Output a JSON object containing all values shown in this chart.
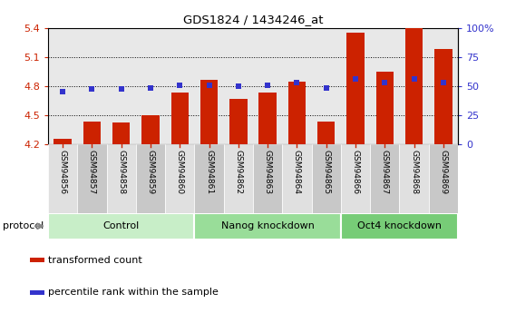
{
  "title": "GDS1824 / 1434246_at",
  "samples": [
    "GSM94856",
    "GSM94857",
    "GSM94858",
    "GSM94859",
    "GSM94860",
    "GSM94861",
    "GSM94862",
    "GSM94863",
    "GSM94864",
    "GSM94865",
    "GSM94866",
    "GSM94867",
    "GSM94868",
    "GSM94869"
  ],
  "bar_values": [
    4.25,
    4.43,
    4.42,
    4.5,
    4.73,
    4.86,
    4.67,
    4.73,
    4.85,
    4.43,
    5.35,
    4.95,
    5.4,
    5.18
  ],
  "dot_values": [
    4.74,
    4.77,
    4.77,
    4.78,
    4.81,
    4.81,
    4.8,
    4.81,
    4.84,
    4.78,
    4.87,
    4.84,
    4.87,
    4.84
  ],
  "ylim_left": [
    4.2,
    5.4
  ],
  "ylim_right": [
    0,
    100
  ],
  "yticks_left": [
    4.2,
    4.5,
    4.8,
    5.1,
    5.4
  ],
  "yticks_right": [
    0,
    25,
    50,
    75,
    100
  ],
  "bar_color": "#cc2200",
  "dot_color": "#3333cc",
  "bar_bottom": 4.2,
  "col_bg_even": "#e8e8e8",
  "col_bg_odd": "#d0d0d0",
  "groups": [
    {
      "label": "Control",
      "start": 0,
      "end": 5,
      "color": "#c8eec8"
    },
    {
      "label": "Nanog knockdown",
      "start": 5,
      "end": 10,
      "color": "#99dd99"
    },
    {
      "label": "Oct4 knockdown",
      "start": 10,
      "end": 14,
      "color": "#77cc77"
    }
  ],
  "protocol_label": "protocol",
  "legend_items": [
    {
      "label": "transformed count",
      "color": "#cc2200"
    },
    {
      "label": "percentile rank within the sample",
      "color": "#3333cc"
    }
  ],
  "plot_bg": "#ffffff",
  "grid_color": "#000000",
  "grid_linestyle": ":",
  "grid_linewidth": 0.7
}
